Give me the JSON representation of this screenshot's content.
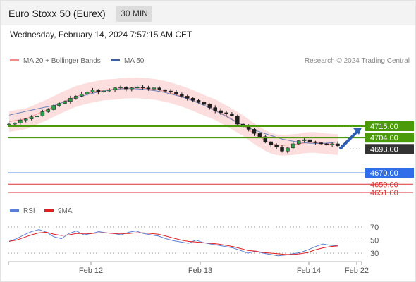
{
  "header": {
    "title": "Euro Stoxx 50 (Eurex)",
    "interval": "30 MIN"
  },
  "timestamp": "Wednesday, February 14, 2024 7:57:15 AM CET",
  "legend": {
    "bollinger": {
      "label": "MA 20 + Bollinger Bands",
      "color": "#f08c8c"
    },
    "ma50": {
      "label": "MA 50",
      "color": "#3a5f9e"
    }
  },
  "credit": "Research © 2024 Trading Central",
  "rsi_legend": {
    "rsi": {
      "label": "RSI",
      "color": "#5b7fd6"
    },
    "ma9": {
      "label": "9MA",
      "color": "#e02020"
    }
  },
  "chart_data": [
    {
      "type": "candlestick",
      "ylim": [
        4647,
        4735
      ],
      "price_levels": [
        {
          "label": "4715.00",
          "value": 4715,
          "color": "#4a9a0a"
        },
        {
          "label": "4704.00",
          "value": 4704,
          "color": "#4a9a0a"
        },
        {
          "label": "4693.00",
          "value": 4693,
          "color": "#333333"
        },
        {
          "label": "4670.00",
          "value": 4670,
          "color": "#2f6ee8"
        },
        {
          "label": "4659.00",
          "value": 4659,
          "color": "#e03030"
        },
        {
          "label": "4651.00",
          "value": 4651,
          "color": "#e03030"
        }
      ],
      "close_path": [
        4717,
        4718,
        4721,
        4722,
        4724,
        4725,
        4729,
        4731,
        4735,
        4737,
        4739,
        4742,
        4744,
        4746,
        4748,
        4750,
        4748,
        4749,
        4750,
        4752,
        4753,
        4751,
        4752,
        4753,
        4752,
        4751,
        4752,
        4750,
        4749,
        4748,
        4746,
        4744,
        4742,
        4740,
        4738,
        4736,
        4733,
        4730,
        4728,
        4727,
        4725,
        4717,
        4715,
        4712,
        4708,
        4705,
        4700,
        4697,
        4695,
        4691,
        4694,
        4698,
        4701,
        4702,
        4700,
        4699,
        4698,
        4697,
        4698,
        4696
      ],
      "close_path_note": "ordered close prices sampled left to right across the session",
      "x_ticks": [
        "Feb 12",
        "Feb 13",
        "Feb 14",
        "Feb 22"
      ],
      "forecast": {
        "from": 4693,
        "to": 4715
      }
    },
    {
      "type": "line",
      "title": "RSI",
      "ylim": [
        20,
        80
      ],
      "y_ticks": [
        30,
        50,
        70
      ],
      "series": [
        {
          "name": "RSI",
          "values": [
            48,
            52,
            58,
            63,
            66,
            62,
            55,
            52,
            60,
            64,
            58,
            60,
            63,
            61,
            60,
            58,
            62,
            64,
            60,
            58,
            56,
            52,
            49,
            47,
            45,
            50,
            46,
            44,
            42,
            40,
            38,
            34,
            30,
            33,
            30,
            28,
            26,
            27,
            29,
            31,
            35,
            40,
            44,
            42,
            41
          ]
        },
        {
          "name": "9MA",
          "values": [
            48,
            50,
            54,
            58,
            61,
            62,
            59,
            57,
            58,
            60,
            60,
            60,
            61,
            61,
            60,
            60,
            60,
            61,
            61,
            60,
            59,
            56,
            53,
            50,
            48,
            47,
            46,
            45,
            44,
            42,
            40,
            37,
            34,
            33,
            31,
            30,
            29,
            28,
            28,
            29,
            31,
            35,
            38,
            40,
            41
          ]
        }
      ]
    }
  ]
}
